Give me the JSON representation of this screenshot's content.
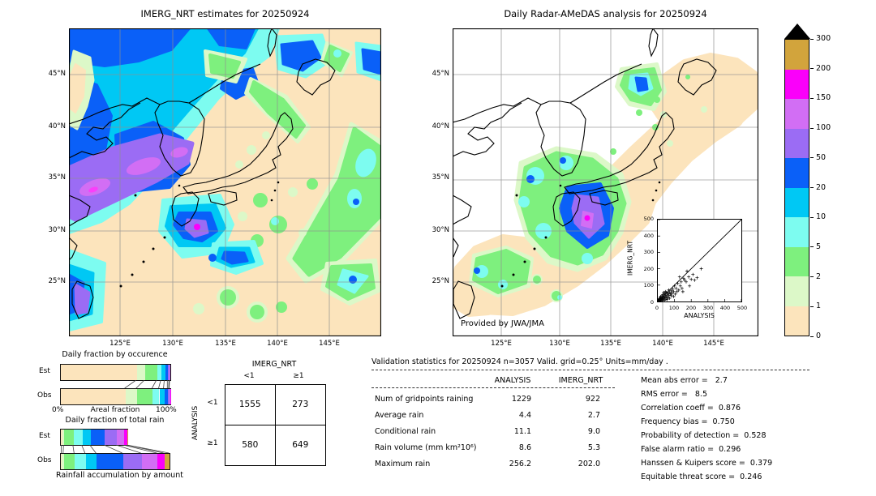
{
  "palette": {
    "wheat": "#fce4bc",
    "palegreen": "#dcf8c8",
    "green": "#7ef07e",
    "aqua": "#7dfcf0",
    "cyan": "#00c8f4",
    "blue": "#0a60f8",
    "purple": "#9b6cf4",
    "orchid": "#d26ef4",
    "magenta": "#fa00fa",
    "gold": "#d2a43c",
    "black": "#000000"
  },
  "left_map": {
    "title": "IMERG_NRT estimates for 20250924",
    "lat_ticks": [
      "45°N",
      "40°N",
      "35°N",
      "30°N",
      "25°N"
    ],
    "lon_ticks": [
      "125°E",
      "130°E",
      "135°E",
      "140°E",
      "145°E"
    ]
  },
  "right_map": {
    "title": "Daily Radar-AMeDAS analysis for 20250924",
    "credit": "Provided by JWA/JMA",
    "lat_ticks": [
      "45°N",
      "40°N",
      "35°N",
      "30°N",
      "25°N"
    ],
    "lon_ticks": [
      "125°E",
      "130°E",
      "135°E",
      "140°E",
      "145°E"
    ]
  },
  "colorbar": {
    "tick_labels": [
      "300",
      "200",
      "150",
      "100",
      "50",
      "20",
      "10",
      "5",
      "2",
      "1",
      "0"
    ],
    "cells_top_to_bottom": [
      "gold",
      "magenta",
      "orchid",
      "purple",
      "blue",
      "cyan",
      "aqua",
      "green",
      "palegreen",
      "wheat"
    ],
    "overflow_marker": "black-triangle"
  },
  "inset_scatter": {
    "xlabel": "ANALYSIS",
    "ylabel": "IMERG_NRT",
    "x_ticks": [
      "0",
      "100",
      "200",
      "300",
      "400",
      "500"
    ],
    "y_ticks": [
      "500",
      "400",
      "300",
      "200",
      "100",
      "0"
    ]
  },
  "occurrence_chart": {
    "title": "Daily fraction by occurence",
    "rows": [
      "Est",
      "Obs"
    ],
    "x_left": "0%",
    "x_label": "Areal fraction",
    "x_right": "100%"
  },
  "totalrain_chart": {
    "title": "Daily fraction of total rain",
    "caption": "Rainfall accumulation by amount",
    "rows": [
      "Est",
      "Obs"
    ]
  },
  "contingency": {
    "col_group": "IMERG_NRT",
    "row_group": "ANALYSIS",
    "col_labels": [
      "<1",
      "≥1"
    ],
    "row_labels": [
      "<1",
      "≥1"
    ],
    "cells": [
      [
        "1555",
        "273"
      ],
      [
        "580",
        "649"
      ]
    ]
  },
  "validation": {
    "title": "Validation statistics for 20250924  n=3057 Valid. grid=0.25° Units=mm/day .",
    "col_headers": [
      "ANALYSIS",
      "IMERG_NRT"
    ],
    "rows": [
      {
        "label": "Num of gridpoints raining",
        "analysis": "1229",
        "imerg": "922"
      },
      {
        "label": "Average rain",
        "analysis": "4.4",
        "imerg": "2.7"
      },
      {
        "label": "Conditional rain",
        "analysis": "11.1",
        "imerg": "9.0"
      },
      {
        "label": "Rain volume (mm km²10⁶)",
        "analysis": "8.6",
        "imerg": "5.3"
      },
      {
        "label": "Maximum rain",
        "analysis": "256.2",
        "imerg": "202.0"
      }
    ]
  },
  "scores": [
    {
      "text": "Mean abs error =   2.7"
    },
    {
      "text": "RMS error =   8.5"
    },
    {
      "text": "Correlation coeff =  0.876"
    },
    {
      "text": "Frequency bias =  0.750"
    },
    {
      "text": "Probability of detection =  0.528"
    },
    {
      "text": "False alarm ratio =  0.296"
    },
    {
      "text": "Hanssen & Kuipers score =  0.379"
    },
    {
      "text": "Equitable threat score =  0.246"
    }
  ],
  "chart_data": [
    {
      "id": "left-map",
      "type": "heatmap",
      "title": "IMERG_NRT estimates for 20250924",
      "units": "mm/day",
      "levels": [
        0,
        1,
        2,
        5,
        10,
        20,
        50,
        100,
        150,
        200,
        300
      ],
      "lat_range": [
        22,
        49
      ],
      "lon_range": [
        120.5,
        149.5
      ],
      "max_value": 202.0
    },
    {
      "id": "right-map",
      "type": "heatmap",
      "title": "Daily Radar-AMeDAS analysis for 20250924",
      "units": "mm/day",
      "levels": [
        0,
        1,
        2,
        5,
        10,
        20,
        50,
        100,
        150,
        200,
        300
      ],
      "lat_range": [
        22,
        49
      ],
      "lon_range": [
        120.5,
        149.5
      ],
      "max_value": 256.2,
      "credit": "Provided by JWA/JMA"
    },
    {
      "id": "scatter",
      "type": "scatter",
      "xlabel": "ANALYSIS",
      "ylabel": "IMERG_NRT",
      "xlim": [
        0,
        500
      ],
      "ylim": [
        0,
        500
      ],
      "diagonal": true,
      "points": [
        [
          2,
          1
        ],
        [
          3,
          5
        ],
        [
          4,
          2
        ],
        [
          5,
          8
        ],
        [
          6,
          3
        ],
        [
          8,
          12
        ],
        [
          9,
          5
        ],
        [
          10,
          2
        ],
        [
          10,
          18
        ],
        [
          12,
          8
        ],
        [
          14,
          25
        ],
        [
          15,
          4
        ],
        [
          16,
          12
        ],
        [
          18,
          30
        ],
        [
          20,
          8
        ],
        [
          20,
          22
        ],
        [
          22,
          15
        ],
        [
          25,
          5
        ],
        [
          25,
          35
        ],
        [
          28,
          18
        ],
        [
          30,
          10
        ],
        [
          30,
          42
        ],
        [
          32,
          25
        ],
        [
          35,
          15
        ],
        [
          35,
          55
        ],
        [
          38,
          30
        ],
        [
          40,
          8
        ],
        [
          40,
          48
        ],
        [
          42,
          22
        ],
        [
          45,
          35
        ],
        [
          45,
          60
        ],
        [
          48,
          15
        ],
        [
          50,
          28
        ],
        [
          50,
          55
        ],
        [
          55,
          40
        ],
        [
          55,
          12
        ],
        [
          60,
          50
        ],
        [
          60,
          25
        ],
        [
          65,
          38
        ],
        [
          65,
          70
        ],
        [
          70,
          20
        ],
        [
          70,
          55
        ],
        [
          75,
          45
        ],
        [
          80,
          35
        ],
        [
          80,
          65
        ],
        [
          85,
          50
        ],
        [
          90,
          75
        ],
        [
          95,
          30
        ],
        [
          95,
          60
        ],
        [
          100,
          95
        ],
        [
          105,
          45
        ],
        [
          110,
          80
        ],
        [
          115,
          60
        ],
        [
          120,
          110
        ],
        [
          125,
          70
        ],
        [
          130,
          150
        ],
        [
          135,
          95
        ],
        [
          140,
          120
        ],
        [
          145,
          80
        ],
        [
          150,
          60
        ],
        [
          155,
          140
        ],
        [
          160,
          130
        ],
        [
          170,
          120
        ],
        [
          175,
          185
        ],
        [
          185,
          150
        ],
        [
          190,
          95
        ],
        [
          200,
          135
        ],
        [
          210,
          165
        ],
        [
          220,
          130
        ],
        [
          235,
          145
        ],
        [
          260,
          200
        ]
      ]
    },
    {
      "id": "occurrence",
      "type": "bar",
      "stacked": true,
      "unit": "percent",
      "title": "Daily fraction by occurence",
      "xlabel": "Areal fraction",
      "xlim": [
        0,
        100
      ],
      "rows": [
        {
          "name": "Est",
          "segments": [
            {
              "color": "wheat",
              "pct": 69.5
            },
            {
              "color": "palegreen",
              "pct": 7.5
            },
            {
              "color": "green",
              "pct": 11
            },
            {
              "color": "aqua",
              "pct": 4
            },
            {
              "color": "cyan",
              "pct": 3.2
            },
            {
              "color": "blue",
              "pct": 2.8
            },
            {
              "color": "purple",
              "pct": 1.5
            },
            {
              "color": "orchid",
              "pct": 0.5
            }
          ]
        },
        {
          "name": "Obs",
          "segments": [
            {
              "color": "wheat",
              "pct": 59
            },
            {
              "color": "palegreen",
              "pct": 10.5
            },
            {
              "color": "green",
              "pct": 14.5
            },
            {
              "color": "aqua",
              "pct": 6
            },
            {
              "color": "cyan",
              "pct": 4.5
            },
            {
              "color": "blue",
              "pct": 3.5
            },
            {
              "color": "purple",
              "pct": 1.2
            },
            {
              "color": "orchid",
              "pct": 0.5
            },
            {
              "color": "magenta",
              "pct": 0.3
            }
          ]
        }
      ]
    },
    {
      "id": "totalrain",
      "type": "bar",
      "stacked": true,
      "unit": "percent",
      "title": "Daily fraction of total rain",
      "caption": "Rainfall accumulation by amount",
      "xlim": [
        0,
        100
      ],
      "rows": [
        {
          "name": "Est",
          "segments": [
            {
              "color": "wheat",
              "pct": 1.2
            },
            {
              "color": "palegreen",
              "pct": 2
            },
            {
              "color": "green",
              "pct": 8.5
            },
            {
              "color": "aqua",
              "pct": 8
            },
            {
              "color": "cyan",
              "pct": 7.5
            },
            {
              "color": "blue",
              "pct": 13
            },
            {
              "color": "purple",
              "pct": 11
            },
            {
              "color": "orchid",
              "pct": 6.5
            },
            {
              "color": "magenta",
              "pct": 2.8
            },
            {
              "color": "gold",
              "pct": 0.5
            }
          ]
        },
        {
          "name": "Obs",
          "segments": [
            {
              "color": "wheat",
              "pct": 1
            },
            {
              "color": "palegreen",
              "pct": 1.8
            },
            {
              "color": "green",
              "pct": 10
            },
            {
              "color": "aqua",
              "pct": 10
            },
            {
              "color": "cyan",
              "pct": 10
            },
            {
              "color": "blue",
              "pct": 24
            },
            {
              "color": "purple",
              "pct": 17
            },
            {
              "color": "orchid",
              "pct": 14.5
            },
            {
              "color": "magenta",
              "pct": 6.2
            },
            {
              "color": "gold",
              "pct": 5
            }
          ]
        }
      ]
    },
    {
      "id": "contingency",
      "type": "table",
      "col_group": "IMERG_NRT",
      "row_group": "ANALYSIS",
      "col_labels": [
        "<1",
        "≥1"
      ],
      "row_labels": [
        "<1",
        "≥1"
      ],
      "values": [
        [
          1555,
          273
        ],
        [
          580,
          649
        ]
      ]
    },
    {
      "id": "validation",
      "type": "table",
      "n": 3057,
      "grid": "0.25°",
      "units": "mm/day",
      "rows": [
        {
          "label": "Num of gridpoints raining",
          "ANALYSIS": 1229,
          "IMERG_NRT": 922
        },
        {
          "label": "Average rain",
          "ANALYSIS": 4.4,
          "IMERG_NRT": 2.7
        },
        {
          "label": "Conditional rain",
          "ANALYSIS": 11.1,
          "IMERG_NRT": 9.0
        },
        {
          "label": "Rain volume (mm km2 10^6)",
          "ANALYSIS": 8.6,
          "IMERG_NRT": 5.3
        },
        {
          "label": "Maximum rain",
          "ANALYSIS": 256.2,
          "IMERG_NRT": 202.0
        }
      ]
    },
    {
      "id": "scores",
      "type": "list",
      "items": [
        {
          "label": "Mean abs error",
          "value": 2.7
        },
        {
          "label": "RMS error",
          "value": 8.5
        },
        {
          "label": "Correlation coeff",
          "value": 0.876
        },
        {
          "label": "Frequency bias",
          "value": 0.75
        },
        {
          "label": "Probability of detection",
          "value": 0.528
        },
        {
          "label": "False alarm ratio",
          "value": 0.296
        },
        {
          "label": "Hanssen & Kuipers score",
          "value": 0.379
        },
        {
          "label": "Equitable threat score",
          "value": 0.246
        }
      ]
    }
  ]
}
